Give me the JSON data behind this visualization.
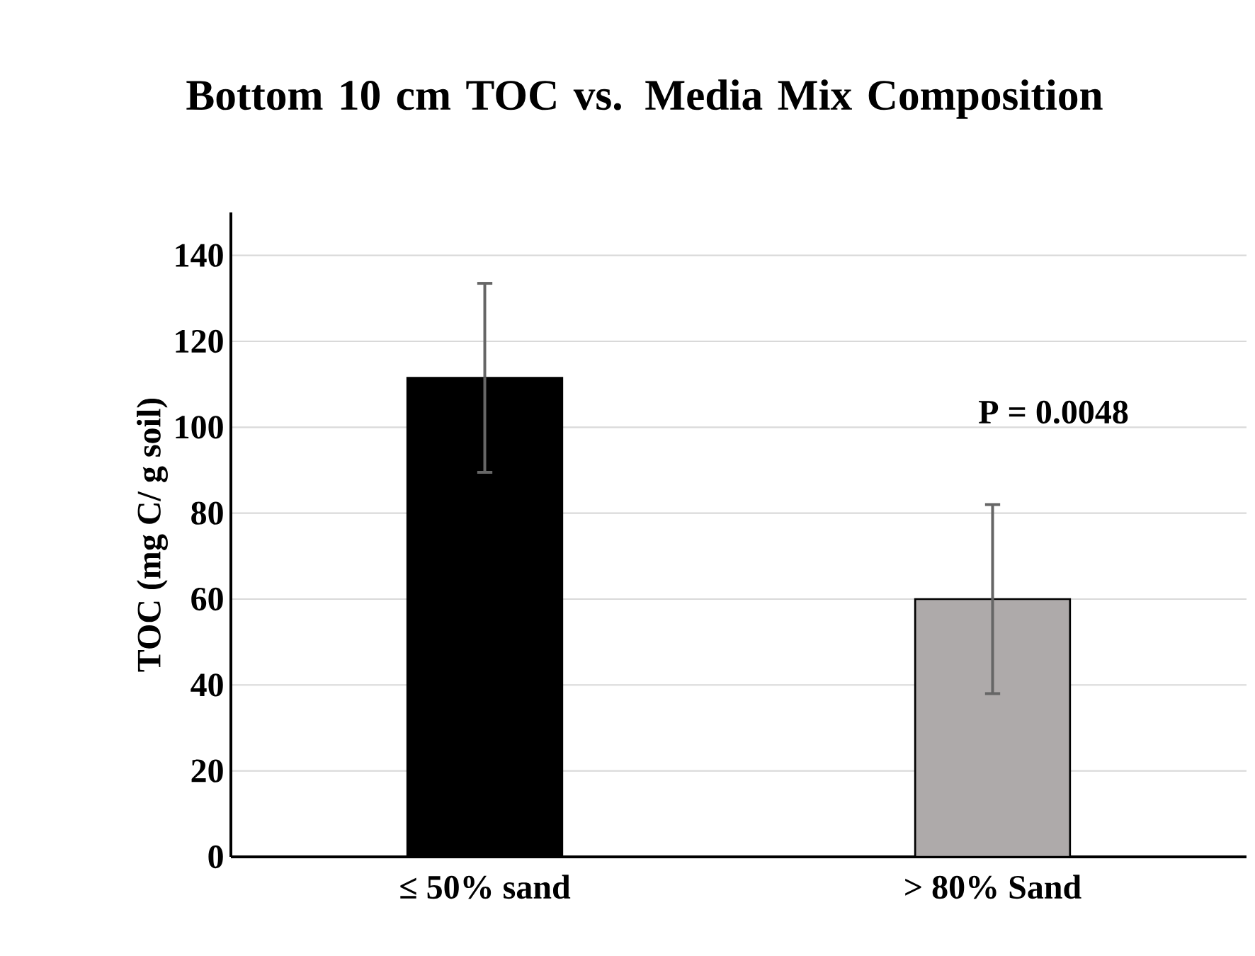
{
  "chart_data": {
    "type": "bar",
    "title": "Bottom 10 cm TOC vs. Media Mix Composition",
    "ylabel": "TOC (mg C/ g soil)",
    "categories": [
      "≤ 50% sand",
      "> 80% Sand"
    ],
    "values": [
      111.5,
      60
    ],
    "colors": [
      "#000000",
      "#aeaaaa"
    ],
    "errors": [
      22,
      22
    ],
    "ylim": [
      0,
      150
    ],
    "yticks": [
      0,
      20,
      40,
      60,
      80,
      100,
      120,
      140
    ],
    "grid": "y",
    "annotations": [
      "P = 0.0048"
    ]
  }
}
